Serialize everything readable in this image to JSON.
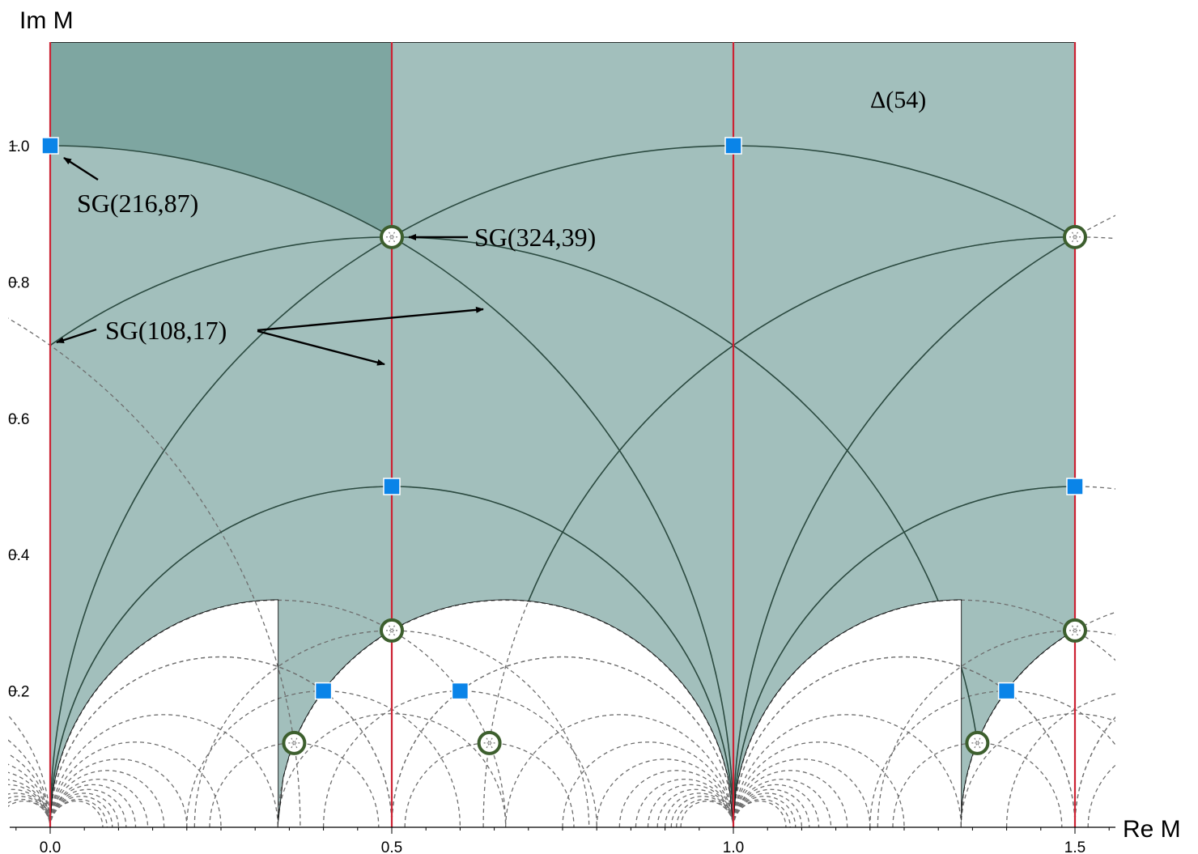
{
  "axes": {
    "x_label": "Re M",
    "y_label": "Im M",
    "x_ticks": [
      {
        "value": 0.0,
        "label": "0.0"
      },
      {
        "value": 0.5,
        "label": "0.5"
      },
      {
        "value": 1.0,
        "label": "1.0"
      },
      {
        "value": 1.5,
        "label": "1.5"
      }
    ],
    "y_ticks": [
      {
        "value": 0.2,
        "label": "0.2"
      },
      {
        "value": 0.4,
        "label": "0.4"
      },
      {
        "value": 0.6,
        "label": "0.6"
      },
      {
        "value": 0.8,
        "label": "0.8"
      },
      {
        "value": 1.0,
        "label": "1.0"
      }
    ]
  },
  "region_label": "Δ(54)",
  "colors": {
    "region_fill": "#a2bfbc",
    "fundamental_fill": "#7ea6a1",
    "solid_arc": "#2b4a40",
    "dashed_arc": "#6e6e6e",
    "red_line": "#cc2233",
    "square_marker": "#0a84e8",
    "circle_marker": "#3d5f2e"
  },
  "annotations": [
    {
      "label": "SG(216,87)"
    },
    {
      "label": "SG(324,39)"
    },
    {
      "label": "SG(108,17)"
    }
  ],
  "points": {
    "squares": [
      {
        "x": 0.0,
        "y": 1.0
      },
      {
        "x": 1.0,
        "y": 1.0
      },
      {
        "x": 0.5,
        "y": 0.5
      },
      {
        "x": 1.5,
        "y": 0.5
      },
      {
        "x": 0.4,
        "y": 0.2
      },
      {
        "x": 0.6,
        "y": 0.2
      },
      {
        "x": 1.4,
        "y": 0.2
      }
    ],
    "circles": [
      {
        "x": 0.5,
        "y": 0.866
      },
      {
        "x": 1.5,
        "y": 0.866
      },
      {
        "x": 0.5,
        "y": 0.2887
      },
      {
        "x": 1.5,
        "y": 0.2887
      },
      {
        "x": 0.3571,
        "y": 0.1237
      },
      {
        "x": 0.6429,
        "y": 0.1237
      },
      {
        "x": 1.3571,
        "y": 0.1237
      }
    ]
  }
}
